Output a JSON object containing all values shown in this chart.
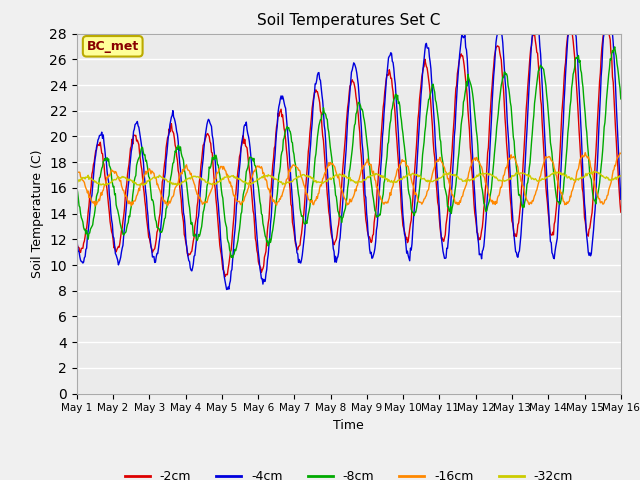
{
  "title": "Soil Temperatures Set C",
  "xlabel": "Time",
  "ylabel": "Soil Temperature (C)",
  "ylim": [
    0,
    28
  ],
  "yticks": [
    0,
    2,
    4,
    6,
    8,
    10,
    12,
    14,
    16,
    18,
    20,
    22,
    24,
    26,
    28
  ],
  "bg_color": "#ebebeb",
  "series": [
    {
      "label": "-2cm",
      "color": "#dd0000"
    },
    {
      "label": "-4cm",
      "color": "#0000dd"
    },
    {
      "label": "-8cm",
      "color": "#00aa00"
    },
    {
      "label": "-16cm",
      "color": "#ff8800"
    },
    {
      "label": "-32cm",
      "color": "#cccc00"
    }
  ],
  "annotation_text": "BC_met",
  "annotation_bg": "#ffff99",
  "annotation_border": "#bbaa00",
  "annotation_text_color": "#880000",
  "n_days": 15,
  "n_per_day": 48,
  "x_tick_labels": [
    "May 1",
    "May 2",
    "May 3",
    "May 4",
    "May 5",
    "May 6",
    "May 7",
    "May 8",
    "May 9",
    "May 10",
    "May 11",
    "May 12",
    "May 13",
    "May 14",
    "May 15",
    "May 16"
  ],
  "figsize": [
    6.4,
    4.8
  ],
  "dpi": 100
}
